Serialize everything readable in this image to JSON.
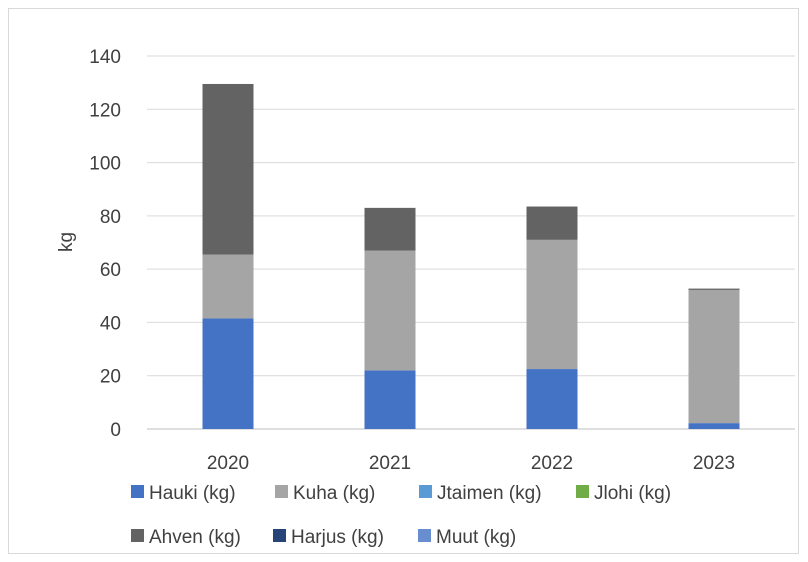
{
  "chart_data": {
    "type": "bar",
    "stacked": true,
    "categories": [
      "2020",
      "2021",
      "2022",
      "2023"
    ],
    "ylabel": "kg",
    "ylim": [
      0,
      140
    ],
    "yticks": [
      0,
      20,
      40,
      60,
      80,
      100,
      120,
      140
    ],
    "grid": true,
    "legend_position": "bottom",
    "series": [
      {
        "name": "Hauki (kg)",
        "color": "#4472c4",
        "values": [
          41.5,
          22,
          22.5,
          2.2
        ]
      },
      {
        "name": "Kuha (kg)",
        "color": "#a5a5a5",
        "values": [
          24,
          45,
          48.5,
          50
        ]
      },
      {
        "name": "Jtaimen (kg)",
        "color": "#5b9bd5",
        "values": [
          0,
          0,
          0,
          0
        ]
      },
      {
        "name": "Jlohi (kg)",
        "color": "#70ad47",
        "values": [
          0,
          0,
          0,
          0
        ]
      },
      {
        "name": "Ahven (kg)",
        "color": "#636363",
        "values": [
          64,
          16,
          12.5,
          0.5
        ]
      },
      {
        "name": "Harjus (kg)",
        "color": "#264478",
        "values": [
          0,
          0,
          0,
          0
        ]
      },
      {
        "name": "Muut (kg)",
        "color": "#698ed0",
        "values": [
          0,
          0,
          0,
          0
        ]
      }
    ]
  }
}
